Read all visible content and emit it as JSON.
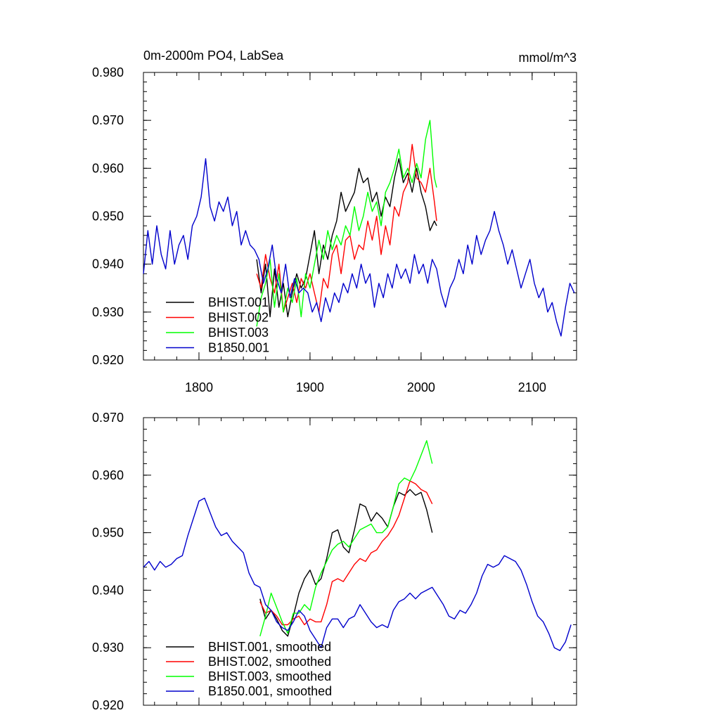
{
  "chart_data": [
    {
      "type": "line",
      "title": "0m-2000m PO4, LabSea",
      "units": "mmol/m^3",
      "xlabel": "",
      "ylabel": "",
      "xlim": [
        1750,
        2140
      ],
      "ylim": [
        0.92,
        0.98
      ],
      "xticks": [
        1800,
        1900,
        2000,
        2100
      ],
      "xtick_labels": [
        "1800",
        "1900",
        "2000",
        "2100"
      ],
      "yticks": [
        0.92,
        0.93,
        0.94,
        0.95,
        0.96,
        0.97,
        0.98
      ],
      "ytick_labels": [
        "0.920",
        "0.930",
        "0.940",
        "0.950",
        "0.960",
        "0.970",
        "0.980"
      ],
      "legend_position": "bottom-left",
      "series": [
        {
          "name": "BHIST.001",
          "color": "#000000",
          "x": [
            1852,
            1856,
            1860,
            1864,
            1868,
            1872,
            1876,
            1880,
            1884,
            1888,
            1892,
            1896,
            1900,
            1904,
            1908,
            1912,
            1916,
            1920,
            1924,
            1928,
            1932,
            1936,
            1940,
            1944,
            1948,
            1952,
            1956,
            1960,
            1964,
            1968,
            1972,
            1976,
            1980,
            1984,
            1988,
            1992,
            1996,
            2000,
            2004,
            2008,
            2012,
            2014
          ],
          "y": [
            0.941,
            0.934,
            0.94,
            0.929,
            0.939,
            0.931,
            0.936,
            0.929,
            0.934,
            0.938,
            0.935,
            0.937,
            0.942,
            0.947,
            0.938,
            0.944,
            0.941,
            0.946,
            0.949,
            0.955,
            0.951,
            0.953,
            0.955,
            0.96,
            0.957,
            0.958,
            0.953,
            0.955,
            0.95,
            0.954,
            0.952,
            0.958,
            0.962,
            0.957,
            0.959,
            0.955,
            0.96,
            0.955,
            0.952,
            0.947,
            0.949,
            0.948
          ]
        },
        {
          "name": "BHIST.002",
          "color": "#ff0000",
          "x": [
            1852,
            1856,
            1860,
            1864,
            1868,
            1872,
            1876,
            1880,
            1884,
            1888,
            1892,
            1896,
            1900,
            1904,
            1908,
            1912,
            1916,
            1920,
            1924,
            1928,
            1932,
            1936,
            1940,
            1944,
            1948,
            1952,
            1956,
            1960,
            1964,
            1968,
            1972,
            1976,
            1980,
            1984,
            1988,
            1992,
            1996,
            2000,
            2004,
            2008,
            2012,
            2014
          ],
          "y": [
            0.938,
            0.935,
            0.942,
            0.937,
            0.934,
            0.94,
            0.93,
            0.933,
            0.936,
            0.932,
            0.937,
            0.935,
            0.938,
            0.934,
            0.93,
            0.937,
            0.935,
            0.942,
            0.944,
            0.938,
            0.945,
            0.946,
            0.941,
            0.944,
            0.943,
            0.949,
            0.945,
            0.95,
            0.942,
            0.948,
            0.944,
            0.952,
            0.95,
            0.955,
            0.957,
            0.965,
            0.958,
            0.957,
            0.955,
            0.96,
            0.953,
            0.949
          ]
        },
        {
          "name": "BHIST.003",
          "color": "#00ff00",
          "x": [
            1852,
            1856,
            1860,
            1864,
            1868,
            1872,
            1876,
            1880,
            1884,
            1888,
            1892,
            1896,
            1900,
            1904,
            1908,
            1912,
            1916,
            1920,
            1924,
            1928,
            1932,
            1936,
            1940,
            1944,
            1948,
            1952,
            1956,
            1960,
            1964,
            1968,
            1972,
            1976,
            1980,
            1984,
            1988,
            1992,
            1996,
            2000,
            2004,
            2008,
            2012,
            2014
          ],
          "y": [
            0.927,
            0.933,
            0.936,
            0.941,
            0.931,
            0.938,
            0.93,
            0.935,
            0.932,
            0.937,
            0.929,
            0.938,
            0.935,
            0.94,
            0.945,
            0.941,
            0.947,
            0.943,
            0.946,
            0.944,
            0.948,
            0.946,
            0.952,
            0.947,
            0.95,
            0.955,
            0.951,
            0.953,
            0.948,
            0.955,
            0.957,
            0.96,
            0.964,
            0.958,
            0.96,
            0.957,
            0.961,
            0.958,
            0.966,
            0.97,
            0.958,
            0.956
          ]
        },
        {
          "name": "B1850.001",
          "color": "#0000cc",
          "x": [
            1750,
            1754,
            1758,
            1762,
            1766,
            1770,
            1774,
            1778,
            1782,
            1786,
            1790,
            1794,
            1798,
            1802,
            1806,
            1810,
            1814,
            1818,
            1822,
            1826,
            1830,
            1834,
            1838,
            1842,
            1846,
            1850,
            1854,
            1858,
            1862,
            1866,
            1870,
            1874,
            1878,
            1882,
            1886,
            1890,
            1894,
            1898,
            1902,
            1906,
            1910,
            1914,
            1918,
            1922,
            1926,
            1930,
            1934,
            1938,
            1942,
            1946,
            1950,
            1954,
            1958,
            1962,
            1966,
            1970,
            1974,
            1978,
            1982,
            1986,
            1990,
            1994,
            1998,
            2002,
            2006,
            2010,
            2014,
            2018,
            2022,
            2026,
            2030,
            2034,
            2038,
            2042,
            2046,
            2050,
            2054,
            2058,
            2062,
            2066,
            2070,
            2074,
            2078,
            2082,
            2086,
            2090,
            2094,
            2098,
            2102,
            2106,
            2110,
            2114,
            2118,
            2122,
            2126,
            2130,
            2134,
            2138
          ],
          "y": [
            0.938,
            0.947,
            0.94,
            0.948,
            0.942,
            0.939,
            0.947,
            0.94,
            0.944,
            0.946,
            0.941,
            0.948,
            0.95,
            0.954,
            0.962,
            0.952,
            0.949,
            0.953,
            0.951,
            0.954,
            0.948,
            0.951,
            0.944,
            0.947,
            0.944,
            0.943,
            0.941,
            0.936,
            0.939,
            0.944,
            0.937,
            0.934,
            0.94,
            0.933,
            0.937,
            0.934,
            0.935,
            0.934,
            0.93,
            0.932,
            0.928,
            0.933,
            0.93,
            0.934,
            0.932,
            0.936,
            0.934,
            0.938,
            0.935,
            0.94,
            0.936,
            0.938,
            0.931,
            0.936,
            0.933,
            0.938,
            0.935,
            0.94,
            0.937,
            0.939,
            0.936,
            0.942,
            0.938,
            0.94,
            0.936,
            0.941,
            0.939,
            0.934,
            0.931,
            0.935,
            0.937,
            0.941,
            0.938,
            0.944,
            0.94,
            0.946,
            0.942,
            0.945,
            0.947,
            0.951,
            0.947,
            0.944,
            0.94,
            0.943,
            0.939,
            0.935,
            0.938,
            0.941,
            0.936,
            0.933,
            0.935,
            0.93,
            0.932,
            0.928,
            0.925,
            0.931,
            0.936,
            0.934
          ]
        }
      ]
    },
    {
      "type": "line",
      "title": "",
      "units": "",
      "xlabel": "",
      "ylabel": "",
      "xlim": [
        1750,
        2140
      ],
      "ylim": [
        0.92,
        0.97
      ],
      "xticks": [
        1800,
        1900,
        2000,
        2100
      ],
      "xtick_labels": [],
      "yticks": [
        0.92,
        0.93,
        0.94,
        0.95,
        0.96,
        0.97
      ],
      "ytick_labels": [
        "0.920",
        "0.930",
        "0.940",
        "0.950",
        "0.960",
        "0.970"
      ],
      "legend_position": "bottom-left",
      "series": [
        {
          "name": "BHIST.001, smoothed",
          "color": "#000000",
          "x": [
            1855,
            1860,
            1865,
            1870,
            1875,
            1880,
            1885,
            1890,
            1895,
            1900,
            1905,
            1910,
            1915,
            1920,
            1925,
            1930,
            1935,
            1940,
            1945,
            1950,
            1955,
            1960,
            1965,
            1970,
            1975,
            1980,
            1985,
            1990,
            1995,
            2000,
            2005,
            2010
          ],
          "y": [
            0.9385,
            0.935,
            0.9365,
            0.935,
            0.933,
            0.932,
            0.9355,
            0.9395,
            0.942,
            0.9435,
            0.941,
            0.942,
            0.9455,
            0.95,
            0.9505,
            0.9475,
            0.9465,
            0.9505,
            0.955,
            0.9545,
            0.952,
            0.9535,
            0.9525,
            0.951,
            0.9545,
            0.957,
            0.9565,
            0.9575,
            0.9565,
            0.957,
            0.954,
            0.95
          ]
        },
        {
          "name": "BHIST.002, smoothed",
          "color": "#ff0000",
          "x": [
            1855,
            1860,
            1865,
            1870,
            1875,
            1880,
            1885,
            1890,
            1895,
            1900,
            1905,
            1910,
            1915,
            1920,
            1925,
            1930,
            1935,
            1940,
            1945,
            1950,
            1955,
            1960,
            1965,
            1970,
            1975,
            1980,
            1985,
            1990,
            1995,
            2000,
            2005,
            2010
          ],
          "y": [
            0.938,
            0.936,
            0.9365,
            0.9355,
            0.934,
            0.934,
            0.935,
            0.9355,
            0.934,
            0.935,
            0.9345,
            0.9345,
            0.9375,
            0.9415,
            0.942,
            0.9415,
            0.943,
            0.9445,
            0.9455,
            0.945,
            0.9465,
            0.947,
            0.9485,
            0.9495,
            0.951,
            0.953,
            0.956,
            0.959,
            0.9585,
            0.9575,
            0.957,
            0.955
          ]
        },
        {
          "name": "BHIST.003, smoothed",
          "color": "#00ff00",
          "x": [
            1855,
            1860,
            1865,
            1870,
            1875,
            1880,
            1885,
            1890,
            1895,
            1900,
            1905,
            1910,
            1915,
            1920,
            1925,
            1930,
            1935,
            1940,
            1945,
            1950,
            1955,
            1960,
            1965,
            1970,
            1975,
            1980,
            1985,
            1990,
            1995,
            2000,
            2005,
            2010
          ],
          "y": [
            0.932,
            0.9355,
            0.9395,
            0.937,
            0.9345,
            0.9325,
            0.936,
            0.936,
            0.9375,
            0.9365,
            0.9405,
            0.943,
            0.945,
            0.947,
            0.948,
            0.9485,
            0.9475,
            0.949,
            0.9505,
            0.951,
            0.9515,
            0.95,
            0.95,
            0.951,
            0.9545,
            0.9585,
            0.9595,
            0.959,
            0.961,
            0.9635,
            0.966,
            0.962
          ]
        },
        {
          "name": "B1850.001, smoothed",
          "color": "#0000cc",
          "x": [
            1750,
            1755,
            1760,
            1765,
            1770,
            1775,
            1780,
            1785,
            1790,
            1795,
            1800,
            1805,
            1810,
            1815,
            1820,
            1825,
            1830,
            1835,
            1840,
            1845,
            1850,
            1855,
            1860,
            1865,
            1870,
            1875,
            1880,
            1885,
            1890,
            1895,
            1900,
            1905,
            1910,
            1915,
            1920,
            1925,
            1930,
            1935,
            1940,
            1945,
            1950,
            1955,
            1960,
            1965,
            1970,
            1975,
            1980,
            1985,
            1990,
            1995,
            2000,
            2005,
            2010,
            2015,
            2020,
            2025,
            2030,
            2035,
            2040,
            2045,
            2050,
            2055,
            2060,
            2065,
            2070,
            2075,
            2080,
            2085,
            2090,
            2095,
            2100,
            2105,
            2110,
            2115,
            2120,
            2125,
            2130,
            2135
          ],
          "y": [
            0.944,
            0.945,
            0.9435,
            0.945,
            0.944,
            0.9445,
            0.9455,
            0.946,
            0.9495,
            0.9525,
            0.9555,
            0.956,
            0.9535,
            0.951,
            0.9495,
            0.95,
            0.9485,
            0.9475,
            0.9465,
            0.943,
            0.941,
            0.9405,
            0.9375,
            0.9365,
            0.9345,
            0.9335,
            0.933,
            0.9345,
            0.9365,
            0.9355,
            0.933,
            0.9315,
            0.93,
            0.9335,
            0.935,
            0.935,
            0.9335,
            0.935,
            0.9355,
            0.9375,
            0.936,
            0.9345,
            0.9335,
            0.934,
            0.9335,
            0.9365,
            0.938,
            0.9385,
            0.9395,
            0.9385,
            0.9395,
            0.94,
            0.9405,
            0.939,
            0.9375,
            0.9355,
            0.935,
            0.9365,
            0.936,
            0.9375,
            0.9395,
            0.9425,
            0.9445,
            0.944,
            0.9445,
            0.946,
            0.9455,
            0.945,
            0.9435,
            0.941,
            0.938,
            0.9355,
            0.9345,
            0.9325,
            0.93,
            0.9295,
            0.931,
            0.934
          ]
        }
      ]
    }
  ]
}
